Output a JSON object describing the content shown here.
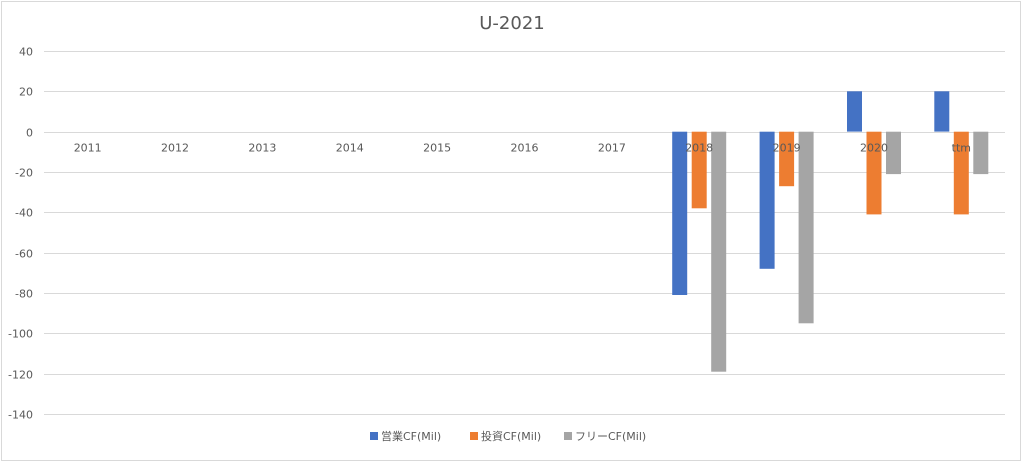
{
  "chart_data": {
    "type": "bar",
    "title": "U-2021",
    "categories": [
      "2011",
      "2012",
      "2013",
      "2014",
      "2015",
      "2016",
      "2017",
      "2018",
      "2019",
      "2020",
      "ttm"
    ],
    "series": [
      {
        "name": "営業CF(Mil)",
        "color": "#4472c4",
        "values": [
          null,
          null,
          null,
          null,
          null,
          null,
          null,
          -81,
          -68,
          20,
          20
        ]
      },
      {
        "name": "投資CF(Mil)",
        "color": "#ed7d31",
        "values": [
          null,
          null,
          null,
          null,
          null,
          null,
          null,
          -38,
          -27,
          -41,
          -41
        ]
      },
      {
        "name": "フリーCF(Mil)",
        "color": "#a5a5a5",
        "values": [
          null,
          null,
          null,
          null,
          null,
          null,
          null,
          -119,
          -95,
          -21,
          -21
        ]
      }
    ],
    "ylim": [
      -140,
      40
    ],
    "yticks": [
      40,
      20,
      0,
      -20,
      -40,
      -60,
      -80,
      -100,
      -120,
      -140
    ],
    "grid": true,
    "legend": "bottom"
  }
}
